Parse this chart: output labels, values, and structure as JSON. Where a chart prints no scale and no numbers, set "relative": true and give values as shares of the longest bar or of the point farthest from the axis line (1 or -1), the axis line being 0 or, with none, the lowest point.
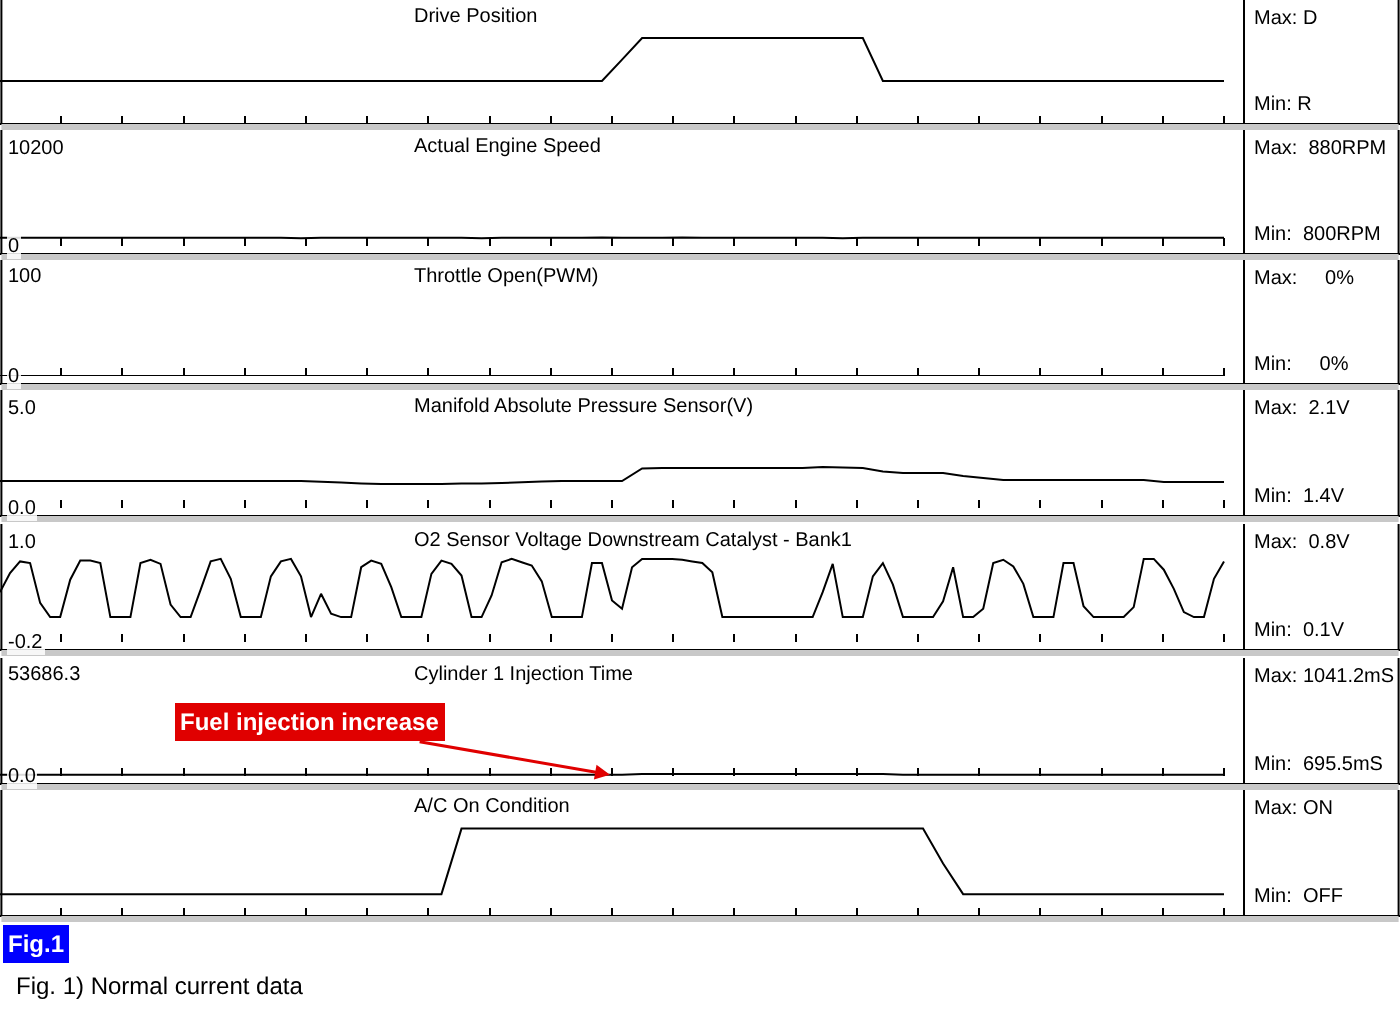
{
  "chart_data": [
    {
      "type": "line",
      "title": "Drive Position",
      "relative": true,
      "tick_labels": false,
      "color": "#000000",
      "marker": "none",
      "line_style": "solid",
      "categories": [
        null,
        null,
        null,
        null,
        null,
        null,
        null,
        null,
        null,
        null,
        null,
        null,
        null,
        null,
        null,
        null,
        null,
        null,
        null,
        null,
        null,
        null,
        null,
        null,
        null,
        null,
        null,
        null,
        null,
        null,
        null,
        null,
        null,
        null,
        null,
        null,
        null,
        null,
        null,
        null,
        null,
        null,
        null,
        null,
        null,
        null,
        null,
        null,
        null,
        null,
        null,
        null,
        null,
        null,
        null,
        null,
        null,
        null,
        null,
        null,
        null,
        null
      ],
      "values": [
        0.5,
        0.5,
        0.5,
        0.5,
        0.5,
        0.5,
        0.5,
        0.5,
        0.5,
        0.5,
        0.5,
        0.5,
        0.5,
        0.5,
        0.5,
        0.5,
        0.5,
        0.5,
        0.5,
        0.5,
        0.5,
        0.5,
        0.5,
        0.5,
        0.5,
        0.5,
        0.5,
        0.5,
        0.5,
        0.5,
        0.5,
        0.75,
        1,
        1,
        1,
        1,
        1,
        1,
        1,
        1,
        1,
        1,
        1,
        1,
        0.5,
        0.5,
        0.5,
        0.5,
        0.5,
        0.5,
        0.5,
        0.5,
        0.5,
        0.5,
        0.5,
        0.5,
        0.5,
        0.5,
        0.5,
        0.5,
        0.5,
        0.5
      ],
      "annotations": [
        "Max: D",
        "Min: R"
      ]
    },
    {
      "type": "line",
      "title": "Actual Engine Speed",
      "tick_labels": "y",
      "color": "#000000",
      "marker": "none",
      "line_style": "solid",
      "categories": [
        null,
        null,
        null,
        null,
        null,
        null,
        null,
        null,
        null,
        null,
        null,
        null,
        null,
        null,
        null,
        null,
        null,
        null,
        null,
        null,
        null,
        null,
        null,
        null,
        null,
        null,
        null,
        null,
        null,
        null,
        null,
        null,
        null,
        null,
        null,
        null,
        null,
        null,
        null,
        null,
        null,
        null,
        null,
        null,
        null,
        null,
        null,
        null,
        null,
        null,
        null,
        null,
        null,
        null,
        null,
        null,
        null,
        null,
        null,
        null,
        null,
        null
      ],
      "values": [
        850,
        850,
        850,
        850,
        850,
        850,
        850,
        850,
        850,
        850,
        850,
        850,
        850,
        850,
        850,
        800,
        850,
        850,
        850,
        850,
        850,
        850,
        850,
        850,
        800,
        850,
        850,
        850,
        850,
        850,
        880,
        850,
        850,
        850,
        880,
        850,
        850,
        850,
        850,
        850,
        850,
        850,
        800,
        850,
        850,
        850,
        850,
        850,
        850,
        850,
        850,
        850,
        850,
        850,
        850,
        850,
        850,
        850,
        850,
        850,
        850,
        850
      ],
      "ylim": [
        0,
        12100
      ],
      "yticks": [
        0,
        10200
      ],
      "annotations": [
        "Max:  880RPM",
        "Min:  800RPM"
      ]
    },
    {
      "type": "line",
      "title": "Throttle Open(PWM)",
      "tick_labels": "y",
      "color": "#000000",
      "marker": "none",
      "line_style": "solid",
      "categories": [
        null,
        null,
        null,
        null,
        null,
        null,
        null,
        null,
        null,
        null,
        null,
        null,
        null,
        null,
        null,
        null,
        null,
        null,
        null,
        null,
        null,
        null,
        null,
        null,
        null,
        null,
        null,
        null,
        null,
        null,
        null,
        null,
        null,
        null,
        null,
        null,
        null,
        null,
        null,
        null,
        null,
        null,
        null,
        null,
        null,
        null,
        null,
        null,
        null,
        null,
        null,
        null,
        null,
        null,
        null,
        null,
        null,
        null,
        null,
        null,
        null,
        null
      ],
      "values": [
        0,
        0,
        0,
        0,
        0,
        0,
        0,
        0,
        0,
        0,
        0,
        0,
        0,
        0,
        0,
        0,
        0,
        0,
        0,
        0,
        0,
        0,
        0,
        0,
        0,
        0,
        0,
        0,
        0,
        0,
        0,
        0,
        0,
        0,
        0,
        0,
        0,
        0,
        0,
        0,
        0,
        0,
        0,
        0,
        0,
        0,
        0,
        0,
        0,
        0,
        0,
        0,
        0,
        0,
        0,
        0,
        0,
        0,
        0,
        0,
        0,
        0
      ],
      "ylim": [
        0,
        118
      ],
      "yticks": [
        0,
        100
      ],
      "annotations": [
        "Max:     0%",
        "Min:     0%"
      ]
    },
    {
      "type": "line",
      "title": "Manifold Absolute Pressure Sensor(V)",
      "tick_labels": "y",
      "color": "#000000",
      "marker": "none",
      "line_style": "solid",
      "categories": [
        null,
        null,
        null,
        null,
        null,
        null,
        null,
        null,
        null,
        null,
        null,
        null,
        null,
        null,
        null,
        null,
        null,
        null,
        null,
        null,
        null,
        null,
        null,
        null,
        null,
        null,
        null,
        null,
        null,
        null,
        null,
        null,
        null,
        null,
        null,
        null,
        null,
        null,
        null,
        null,
        null,
        null,
        null,
        null,
        null,
        null,
        null,
        null,
        null,
        null,
        null,
        null,
        null,
        null,
        null,
        null,
        null,
        null,
        null,
        null,
        null,
        null
      ],
      "values": [
        1.35,
        1.35,
        1.35,
        1.35,
        1.35,
        1.35,
        1.35,
        1.35,
        1.35,
        1.35,
        1.35,
        1.35,
        1.35,
        1.35,
        1.35,
        1.35,
        1.31,
        1.27,
        1.23,
        1.2,
        1.2,
        1.2,
        1.2,
        1.22,
        1.23,
        1.25,
        1.29,
        1.33,
        1.35,
        1.35,
        1.35,
        1.35,
        1.98,
        2.0,
        2.0,
        2.0,
        2.0,
        2.0,
        2.0,
        2.0,
        2.0,
        2.05,
        2.03,
        2.0,
        1.83,
        1.75,
        1.75,
        1.75,
        1.6,
        1.5,
        1.4,
        1.4,
        1.4,
        1.4,
        1.4,
        1.4,
        1.4,
        1.4,
        1.3,
        1.3,
        1.3,
        1.3
      ],
      "ylim": [
        0,
        5.9
      ],
      "yticks": [
        {
          "value": 0,
          "label": "0.0"
        },
        {
          "value": 5,
          "label": "5.0"
        }
      ],
      "annotations": [
        "Max:  2.1V",
        "Min:  1.4V"
      ]
    },
    {
      "type": "line",
      "title": "O2 Sensor Voltage Downstream Catalyst - Bank1",
      "tick_labels": "y",
      "color": "#000000",
      "marker": "none",
      "line_style": "solid",
      "categories": [
        null,
        null,
        null,
        null,
        null,
        null,
        null,
        null,
        null,
        null,
        null,
        null,
        null,
        null,
        null,
        null,
        null,
        null,
        null,
        null,
        null,
        null,
        null,
        null,
        null,
        null,
        null,
        null,
        null,
        null,
        null,
        null,
        null,
        null,
        null,
        null,
        null,
        null,
        null,
        null,
        null,
        null,
        null,
        null,
        null,
        null,
        null,
        null,
        null,
        null,
        null,
        null,
        null,
        null,
        null,
        null,
        null,
        null,
        null,
        null,
        null,
        null,
        null,
        null,
        null,
        null,
        null,
        null,
        null,
        null,
        null,
        null,
        null,
        null,
        null,
        null,
        null,
        null,
        null,
        null,
        null,
        null,
        null,
        null,
        null,
        null,
        null,
        null,
        null,
        null,
        null,
        null,
        null,
        null,
        null,
        null,
        null,
        null,
        null,
        null,
        null,
        null,
        null,
        null,
        null,
        null,
        null,
        null,
        null,
        null,
        null,
        null,
        null,
        null,
        null,
        null,
        null,
        null,
        null,
        null,
        null,
        null,
        null
      ],
      "values": [
        0.4,
        0.63,
        0.77,
        0.75,
        0.27,
        0.1,
        0.1,
        0.55,
        0.78,
        0.78,
        0.75,
        0.1,
        0.1,
        0.1,
        0.75,
        0.79,
        0.74,
        0.25,
        0.1,
        0.1,
        0.43,
        0.77,
        0.8,
        0.56,
        0.1,
        0.1,
        0.1,
        0.59,
        0.77,
        0.8,
        0.59,
        0.1,
        0.38,
        0.14,
        0.1,
        0.1,
        0.7,
        0.78,
        0.74,
        0.46,
        0.1,
        0.1,
        0.1,
        0.62,
        0.78,
        0.74,
        0.6,
        0.1,
        0.1,
        0.36,
        0.76,
        0.8,
        0.76,
        0.72,
        0.53,
        0.1,
        0.1,
        0.1,
        0.1,
        0.75,
        0.75,
        0.3,
        0.2,
        0.7,
        0.8,
        0.8,
        0.8,
        0.8,
        0.79,
        0.77,
        0.75,
        0.64,
        0.1,
        0.1,
        0.1,
        0.1,
        0.1,
        0.1,
        0.1,
        0.1,
        0.1,
        0.1,
        0.4,
        0.74,
        0.1,
        0.1,
        0.1,
        0.59,
        0.75,
        0.49,
        0.1,
        0.1,
        0.1,
        0.1,
        0.29,
        0.7,
        0.1,
        0.1,
        0.2,
        0.75,
        0.79,
        0.71,
        0.5,
        0.1,
        0.1,
        0.1,
        0.75,
        0.75,
        0.23,
        0.1,
        0.1,
        0.1,
        0.1,
        0.22,
        0.8,
        0.8,
        0.67,
        0.44,
        0.16,
        0.1,
        0.1,
        0.56,
        0.77
      ],
      "ylim": [
        -0.2,
        1.22
      ],
      "yticks": [
        -0.2,
        {
          "value": 1.0,
          "label": "1.0"
        }
      ],
      "annotations": [
        "Max:  0.8V",
        "Min:  0.1V"
      ]
    },
    {
      "type": "line",
      "title": "Cylinder 1 Injection Time",
      "tick_labels": "y",
      "color": "#000000",
      "marker": "none",
      "line_style": "solid",
      "categories": [
        null,
        null,
        null,
        null,
        null,
        null,
        null,
        null,
        null,
        null,
        null,
        null,
        null,
        null,
        null,
        null,
        null,
        null,
        null,
        null,
        null,
        null,
        null,
        null,
        null,
        null,
        null,
        null,
        null,
        null,
        null,
        null,
        null,
        null,
        null,
        null,
        null,
        null,
        null,
        null,
        null,
        null,
        null,
        null,
        null,
        null,
        null,
        null,
        null,
        null,
        null,
        null,
        null,
        null,
        null,
        null,
        null,
        null,
        null,
        null,
        null,
        null
      ],
      "values": [
        700,
        700,
        700,
        700,
        700,
        700,
        700,
        700,
        700,
        700,
        700,
        700,
        700,
        700,
        700,
        700,
        700,
        700,
        700,
        700,
        700,
        700,
        700,
        700,
        700,
        700,
        700,
        700,
        700,
        700,
        700,
        700,
        1040,
        1040,
        1040,
        1040,
        1040,
        1040,
        1040,
        1040,
        1040,
        1040,
        1040,
        1040,
        1040,
        700,
        700,
        700,
        700,
        700,
        700,
        700,
        700,
        700,
        700,
        700,
        700,
        700,
        700,
        700,
        700,
        700
      ],
      "ylim": [
        0,
        63300
      ],
      "yticks": [
        {
          "value": 0,
          "label": "0.0"
        },
        53686.3
      ],
      "annotations": [
        "Max: 1041.2mS",
        "Min:  695.5mS",
        {
          "text": "Fuel injection increase",
          "y": 700
        }
      ]
    },
    {
      "type": "line",
      "title": "A/C On Condition",
      "relative": true,
      "tick_labels": false,
      "color": "#000000",
      "marker": "none",
      "line_style": "solid",
      "categories": [
        null,
        null,
        null,
        null,
        null,
        null,
        null,
        null,
        null,
        null,
        null,
        null,
        null,
        null,
        null,
        null,
        null,
        null,
        null,
        null,
        null,
        null,
        null,
        null,
        null,
        null,
        null,
        null,
        null,
        null,
        null,
        null,
        null,
        null,
        null,
        null,
        null,
        null,
        null,
        null,
        null,
        null,
        null,
        null,
        null,
        null,
        null,
        null,
        null,
        null,
        null,
        null,
        null,
        null,
        null,
        null,
        null,
        null,
        null,
        null,
        null,
        null
      ],
      "values": [
        0.25,
        0.25,
        0.25,
        0.25,
        0.25,
        0.25,
        0.25,
        0.25,
        0.25,
        0.25,
        0.25,
        0.25,
        0.25,
        0.25,
        0.25,
        0.25,
        0.25,
        0.25,
        0.25,
        0.25,
        0.25,
        0.25,
        0.25,
        1,
        1,
        1,
        1,
        1,
        1,
        1,
        1,
        1,
        1,
        1,
        1,
        1,
        1,
        1,
        1,
        1,
        1,
        1,
        1,
        1,
        1,
        1,
        1,
        0.6,
        0.25,
        0.25,
        0.25,
        0.25,
        0.25,
        0.25,
        0.25,
        0.25,
        0.25,
        0.25,
        0.25,
        0.25,
        0.25,
        0.25
      ],
      "annotations": [
        "Max: ON",
        "Min:  OFF",
        "Fig.1",
        "Fig. 1) Normal current data"
      ]
    }
  ]
}
